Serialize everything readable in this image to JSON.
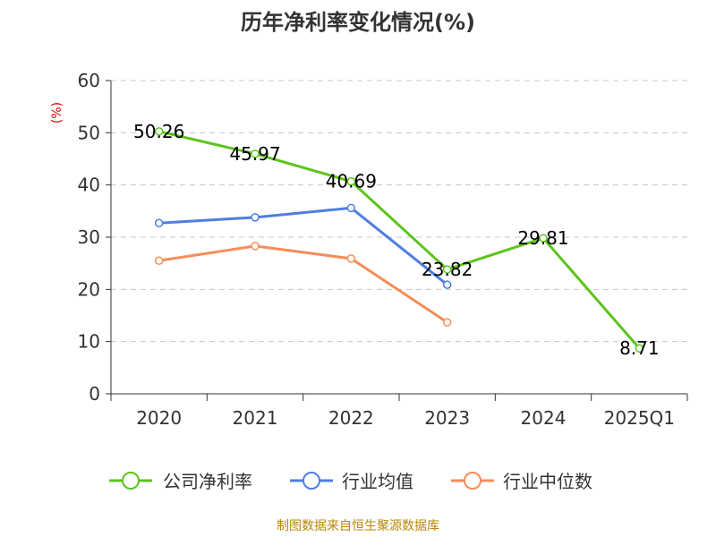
{
  "chart_data": {
    "type": "line",
    "title": "历年净利率变化情况(%)",
    "ylabel": "(%)",
    "xlabel": "",
    "categories": [
      "2020",
      "2021",
      "2022",
      "2023",
      "2024",
      "2025Q1"
    ],
    "ylim": [
      0,
      60
    ],
    "yticks": [
      0,
      10,
      20,
      30,
      40,
      50,
      60
    ],
    "grid": true,
    "legend_position": "bottom",
    "series": [
      {
        "name": "公司净利率",
        "color": "#5cc41c",
        "values": [
          50.26,
          45.97,
          40.69,
          23.82,
          29.81,
          8.71
        ],
        "labels": [
          "50.26",
          "45.97",
          "40.69",
          "23.82",
          "29.81",
          "8.71"
        ]
      },
      {
        "name": "行业均值",
        "color": "#4d7fe0",
        "values": [
          32.7,
          33.8,
          35.6,
          20.9,
          null,
          null
        ]
      },
      {
        "name": "行业中位数",
        "color": "#f58d5a",
        "values": [
          25.5,
          28.3,
          25.9,
          13.7,
          null,
          null
        ]
      }
    ]
  },
  "source": "制图数据来自恒生聚源数据库"
}
